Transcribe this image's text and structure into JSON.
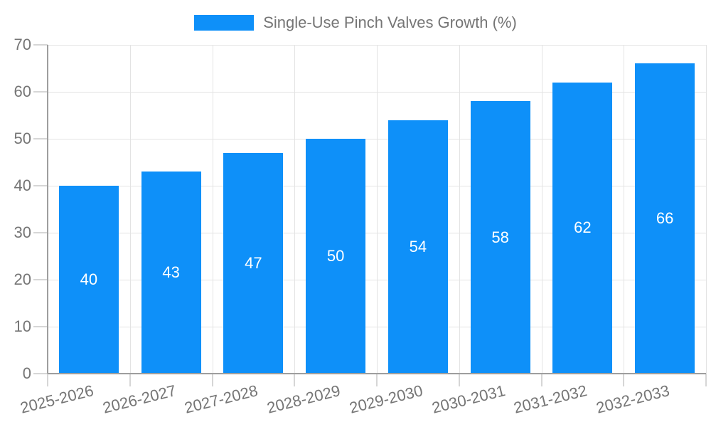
{
  "legend": {
    "label": "Single-Use Pinch Valves Growth (%)"
  },
  "colors": {
    "bar": "#0e90f9",
    "axis_line": "#9e9e9e",
    "grid_line": "#e3e3e3",
    "tick_line": "#d6d6d6",
    "axis_text": "#757575",
    "bar_label_text": "#ffffff",
    "background": "#ffffff"
  },
  "chart_data": {
    "type": "bar",
    "title": "Single-Use Pinch Valves Growth (%)",
    "categories": [
      "2025-2026",
      "2026-2027",
      "2027-2028",
      "2028-2029",
      "2029-2030",
      "2030-2031",
      "2031-2032",
      "2032-2033"
    ],
    "values": [
      40,
      43,
      47,
      50,
      54,
      58,
      62,
      66
    ],
    "xlabel": "",
    "ylabel": "",
    "ylim": [
      0,
      70
    ],
    "ytick_interval": 10,
    "ytick_labels": [
      "0",
      "10",
      "20",
      "30",
      "40",
      "50",
      "60",
      "70"
    ],
    "grid": true,
    "legend_position": "top-center",
    "bar_label_position": "inside-center",
    "x_label_rotation_deg": -14
  }
}
